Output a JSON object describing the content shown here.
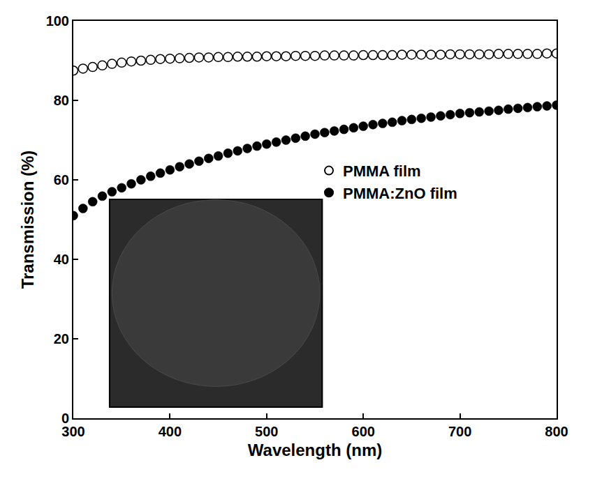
{
  "chart_data": {
    "type": "scatter",
    "x_label": "Wavelength (nm)",
    "y_label": "Transmission (%)",
    "x": [
      300,
      310,
      320,
      330,
      340,
      350,
      360,
      370,
      380,
      390,
      400,
      410,
      420,
      430,
      440,
      450,
      460,
      470,
      480,
      490,
      500,
      510,
      520,
      530,
      540,
      550,
      560,
      570,
      580,
      590,
      600,
      610,
      620,
      630,
      640,
      650,
      660,
      670,
      680,
      690,
      700,
      710,
      720,
      730,
      740,
      750,
      760,
      770,
      780,
      790,
      800
    ],
    "series": [
      {
        "name": "PMMA film",
        "color": "#000000",
        "marker": "circle-open",
        "values": [
          87.5,
          88,
          88.4,
          88.8,
          89.2,
          89.5,
          89.8,
          90,
          90.2,
          90.4,
          90.5,
          90.6,
          90.7,
          90.8,
          90.8,
          90.9,
          90.9,
          91,
          91,
          91,
          91.1,
          91.1,
          91.1,
          91.2,
          91.2,
          91.2,
          91.3,
          91.3,
          91.3,
          91.3,
          91.4,
          91.4,
          91.4,
          91.4,
          91.5,
          91.5,
          91.5,
          91.5,
          91.5,
          91.6,
          91.6,
          91.6,
          91.6,
          91.6,
          91.7,
          91.7,
          91.7,
          91.7,
          91.7,
          91.8,
          91.8
        ]
      },
      {
        "name": "PMMA:ZnO film",
        "color": "#000000",
        "marker": "circle",
        "values": [
          51,
          52.8,
          54.5,
          55.9,
          57,
          58,
          59,
          60,
          60.9,
          61.7,
          62.5,
          63.3,
          64,
          64.7,
          65.4,
          66,
          66.7,
          67.3,
          67.9,
          68.5,
          69,
          69.5,
          70,
          70.5,
          71,
          71.5,
          71.9,
          72.3,
          72.7,
          73.1,
          73.5,
          73.9,
          74.2,
          74.5,
          74.9,
          75.2,
          75.5,
          75.8,
          76.1,
          76.4,
          76.7,
          76.9,
          77.1,
          77.3,
          77.5,
          77.8,
          78,
          78.2,
          78.4,
          78.6,
          78.8
        ]
      }
    ],
    "xlim": [
      300,
      800
    ],
    "xticks": [
      300,
      400,
      500,
      600,
      700,
      800
    ],
    "ylim": [
      0,
      100
    ],
    "yticks": [
      0,
      20,
      40,
      60,
      80,
      100
    ],
    "grid": false,
    "legend": "right"
  }
}
